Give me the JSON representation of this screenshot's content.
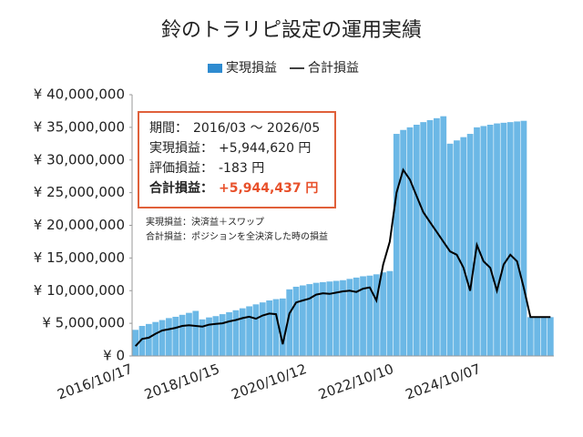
{
  "chart_data": {
    "type": "bar-line",
    "title": "鈴のトラリピ設定の運用実績",
    "categories": [
      "2016/10/17",
      null,
      null,
      null,
      null,
      null,
      null,
      null,
      null,
      null,
      null,
      null,
      null,
      "2018/10/15",
      null,
      null,
      null,
      null,
      null,
      null,
      null,
      null,
      null,
      null,
      null,
      null,
      "2020/10/12",
      null,
      null,
      null,
      null,
      null,
      null,
      null,
      null,
      null,
      null,
      null,
      null,
      "2022/10/10",
      null,
      null,
      null,
      null,
      null,
      null,
      null,
      null,
      null,
      null,
      null,
      null,
      "2024/10/07",
      null,
      null,
      null,
      null,
      null,
      null,
      null,
      null,
      null,
      null
    ],
    "series": [
      {
        "name": "実現損益",
        "type": "bar",
        "color": "#6cb8e6",
        "values": [
          4000000,
          4600000,
          4900000,
          5200000,
          5500000,
          5800000,
          6000000,
          6300000,
          6600000,
          6900000,
          5600000,
          5900000,
          6100000,
          6400000,
          6700000,
          7000000,
          7300000,
          7600000,
          7900000,
          8200000,
          8500000,
          8700000,
          8800000,
          10200000,
          10600000,
          10800000,
          11000000,
          11200000,
          11300000,
          11400000,
          11500000,
          11600000,
          11800000,
          12000000,
          12200000,
          12300000,
          12500000,
          12800000,
          13000000,
          34000000,
          34600000,
          35000000,
          35400000,
          35800000,
          36100000,
          36400000,
          36700000,
          32500000,
          33000000,
          33500000,
          34000000,
          35000000,
          35200000,
          35400000,
          35600000,
          35700000,
          35800000,
          35900000,
          36000000,
          5944620,
          5944620,
          5944620,
          5944620
        ]
      },
      {
        "name": "合計損益",
        "type": "line",
        "color": "#000000",
        "values": [
          1500000,
          2600000,
          2800000,
          3400000,
          3900000,
          4100000,
          4300000,
          4600000,
          4700000,
          4600000,
          4500000,
          4800000,
          4900000,
          5000000,
          5300000,
          5500000,
          5800000,
          6000000,
          5700000,
          6200000,
          6500000,
          6400000,
          1800000,
          6500000,
          8200000,
          8500000,
          8800000,
          9400000,
          9600000,
          9500000,
          9700000,
          9900000,
          10000000,
          9800000,
          10300000,
          10500000,
          8500000,
          14000000,
          17500000,
          25000000,
          28500000,
          27000000,
          24500000,
          22000000,
          20500000,
          19000000,
          17500000,
          16000000,
          15500000,
          13500000,
          10000000,
          17000000,
          14500000,
          13500000,
          10000000,
          14000000,
          15500000,
          14500000,
          10500000,
          5944437,
          5944437,
          5944437,
          5944437
        ]
      }
    ],
    "ylim": [
      0,
      40000000
    ],
    "yticks": [
      {
        "value": 0,
        "label": "¥ 0"
      },
      {
        "value": 5000000,
        "label": "¥ 5,000,000"
      },
      {
        "value": 10000000,
        "label": "¥ 10,000,000"
      },
      {
        "value": 15000000,
        "label": "¥ 15,000,000"
      },
      {
        "value": 20000000,
        "label": "¥ 20,000,000"
      },
      {
        "value": 25000000,
        "label": "¥ 25,000,000"
      },
      {
        "value": 30000000,
        "label": "¥ 30,000,000"
      },
      {
        "value": 35000000,
        "label": "¥ 35,000,000"
      },
      {
        "value": 40000000,
        "label": "¥ 40,000,000"
      }
    ],
    "grid": false,
    "legend": "top",
    "summary": [
      [
        "期間：",
        "2016/03 ～ 2026/05"
      ],
      [
        "実現損益：",
        "+5,944,620 円"
      ],
      [
        "評価損益：",
        "-183 円"
      ],
      [
        "合計損益：",
        "+5,944,437 円"
      ]
    ],
    "notes": [
      "実現損益：決済益＋スワップ",
      "合計損益：ポジションを全決済した時の損益"
    ]
  }
}
